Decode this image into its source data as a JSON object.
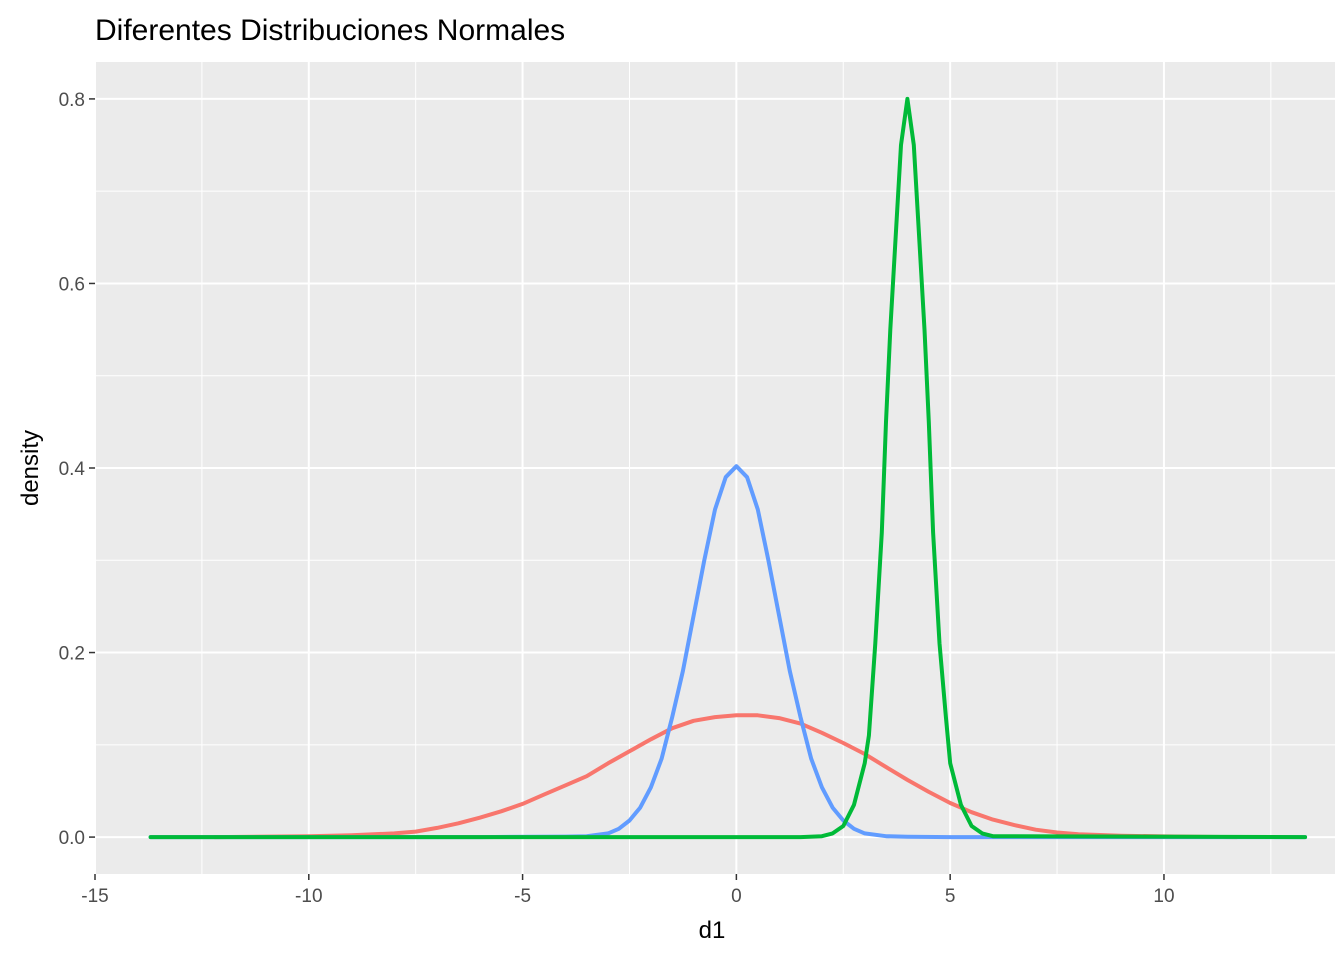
{
  "chart_data": {
    "type": "line",
    "title": "Diferentes Distribuciones Normales",
    "xlabel": "d1",
    "ylabel": "density",
    "xlim": [
      -15,
      14
    ],
    "ylim": [
      -0.04,
      0.84
    ],
    "x_ticks": [
      -15,
      -10,
      -5,
      0,
      5,
      10
    ],
    "x_tick_labels": [
      "-15",
      "-10",
      "-5",
      "0",
      "5",
      "10"
    ],
    "y_ticks": [
      0.0,
      0.2,
      0.4,
      0.6,
      0.8
    ],
    "y_tick_labels": [
      "0.0",
      "0.2",
      "0.4",
      "0.6",
      "0.8"
    ],
    "grid": true,
    "legend": "none",
    "panel_background": "#ebebeb",
    "series": [
      {
        "color": "#f8766d",
        "x": [
          -12.2,
          -11,
          -10,
          -9,
          -8,
          -7.5,
          -7,
          -6.5,
          -6,
          -5.5,
          -5,
          -4.5,
          -4,
          -3.5,
          -3,
          -2.5,
          -2,
          -1.5,
          -1,
          -0.5,
          0,
          0.5,
          1,
          1.5,
          2,
          2.5,
          3,
          3.5,
          4,
          4.5,
          5,
          5.5,
          6,
          6.5,
          7,
          7.5,
          8,
          9,
          10,
          11,
          11.7
        ],
        "y": [
          0.0,
          0.0005,
          0.001,
          0.002,
          0.004,
          0.006,
          0.01,
          0.015,
          0.021,
          0.028,
          0.036,
          0.046,
          0.056,
          0.066,
          0.08,
          0.093,
          0.106,
          0.118,
          0.126,
          0.13,
          0.132,
          0.132,
          0.129,
          0.123,
          0.113,
          0.102,
          0.09,
          0.076,
          0.062,
          0.049,
          0.037,
          0.027,
          0.019,
          0.013,
          0.008,
          0.005,
          0.003,
          0.0015,
          0.0007,
          0.0002,
          0.0
        ]
      },
      {
        "color": "#619cff",
        "x": [
          -13.7,
          -6,
          -4,
          -3.5,
          -3,
          -2.75,
          -2.5,
          -2.25,
          -2,
          -1.75,
          -1.5,
          -1.25,
          -1,
          -0.75,
          -0.5,
          -0.25,
          0,
          0.25,
          0.5,
          0.75,
          1,
          1.25,
          1.5,
          1.75,
          2,
          2.25,
          2.5,
          2.75,
          3,
          3.5,
          4,
          5,
          6,
          13.3
        ],
        "y": [
          0.0,
          0.0,
          0.0005,
          0.001,
          0.004,
          0.009,
          0.018,
          0.032,
          0.054,
          0.085,
          0.13,
          0.18,
          0.24,
          0.3,
          0.355,
          0.39,
          0.402,
          0.39,
          0.355,
          0.3,
          0.24,
          0.18,
          0.13,
          0.085,
          0.054,
          0.032,
          0.018,
          0.009,
          0.004,
          0.001,
          0.0003,
          0.0,
          0.0,
          0.0
        ]
      },
      {
        "color": "#00ba38",
        "x": [
          -13.7,
          1.5,
          2,
          2.25,
          2.5,
          2.75,
          3,
          3.1,
          3.25,
          3.4,
          3.5,
          3.6,
          3.75,
          3.85,
          4,
          4.15,
          4.25,
          4.4,
          4.5,
          4.6,
          4.75,
          4.9,
          5,
          5.25,
          5.5,
          5.75,
          6,
          13.3
        ],
        "y": [
          0.0,
          0.0,
          0.001,
          0.004,
          0.012,
          0.035,
          0.08,
          0.11,
          0.21,
          0.33,
          0.45,
          0.55,
          0.67,
          0.75,
          0.8,
          0.75,
          0.67,
          0.55,
          0.45,
          0.33,
          0.21,
          0.13,
          0.08,
          0.035,
          0.012,
          0.004,
          0.001,
          0.0
        ]
      }
    ]
  }
}
